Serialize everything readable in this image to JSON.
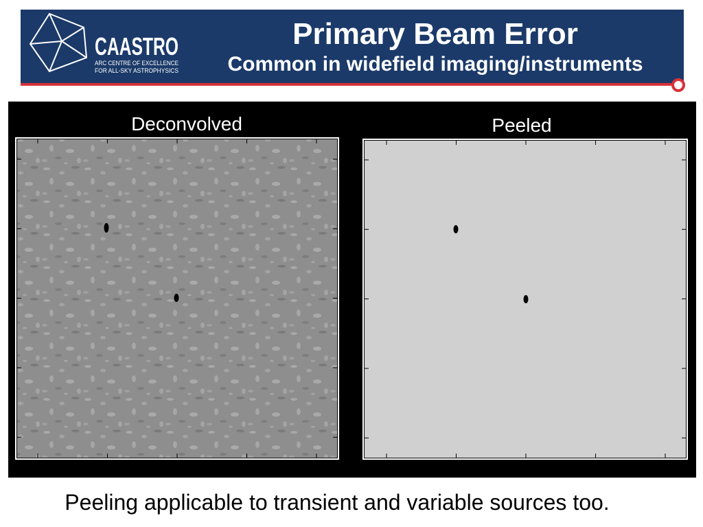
{
  "header": {
    "logo": {
      "name": "CAASTRO",
      "line1": "ARC CENTRE OF EXCELLENCE",
      "line2": "FOR ALL-SKY ASTROPHYSICS"
    },
    "title": "Primary Beam Error",
    "subtitle": "Common in widefield imaging/instruments"
  },
  "panels": [
    {
      "label": "Deconvolved"
    },
    {
      "label": "Peeled"
    }
  ],
  "caption": "Peeling applicable to transient and variable sources too."
}
